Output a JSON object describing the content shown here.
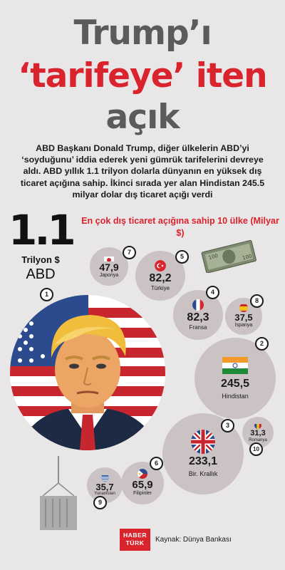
{
  "title": {
    "line1": "Trump’ı",
    "line2": "‘tarifeye’ iten",
    "line3": "açık"
  },
  "intro": "ABD Başkanı Donald Trump, diğer ülkelerin ABD’yi ‘soyduğunu’ iddia ederek yeni gümrük tarifelerini devreye aldı. ABD yıllık 1.1 trilyon dolarla dünyanın en yüksek dış ticaret açığına sahip. İkinci sırada yer alan Hindistan 245.5 milyar dolar dış ticaret açığı verdi",
  "highlight": {
    "value": "1.1",
    "unit": "Trilyon $",
    "country": "ABD",
    "rank": "1"
  },
  "subhead": "En çok dış ticaret açığına sahip 10 ülke (Milyar $)",
  "countries": [
    {
      "rank": "2",
      "value": "245,5",
      "name": "Hindistan",
      "flag": "india-flag"
    },
    {
      "rank": "3",
      "value": "233,1",
      "name": "Bir. Krallık",
      "flag": "uk-flag"
    },
    {
      "rank": "4",
      "value": "82,3",
      "name": "Fransa",
      "flag": "france-flag"
    },
    {
      "rank": "5",
      "value": "82,2",
      "name": "Türkiye",
      "flag": "turkey-flag"
    },
    {
      "rank": "6",
      "value": "65,9",
      "name": "Filipinler",
      "flag": "philippines-flag"
    },
    {
      "rank": "7",
      "value": "47,9",
      "name": "Japonya",
      "flag": "japan-flag"
    },
    {
      "rank": "8",
      "value": "37,5",
      "name": "İspanya",
      "flag": "spain-flag"
    },
    {
      "rank": "9",
      "value": "35,7",
      "name": "Yunanistan",
      "flag": "greece-flag"
    },
    {
      "rank": "10",
      "value": "31,3",
      "name": "Romanya",
      "flag": "romania-flag"
    }
  ],
  "footer": {
    "logo_line1": "HABER",
    "logo_line2": "TÜRK",
    "source": "Kaynak: Dünya Bankası"
  },
  "colors": {
    "background": "#e8e6e6",
    "accent_red": "#d9232d",
    "title_gray": "#5b5b5b",
    "bubble": "#cbc3c3"
  }
}
